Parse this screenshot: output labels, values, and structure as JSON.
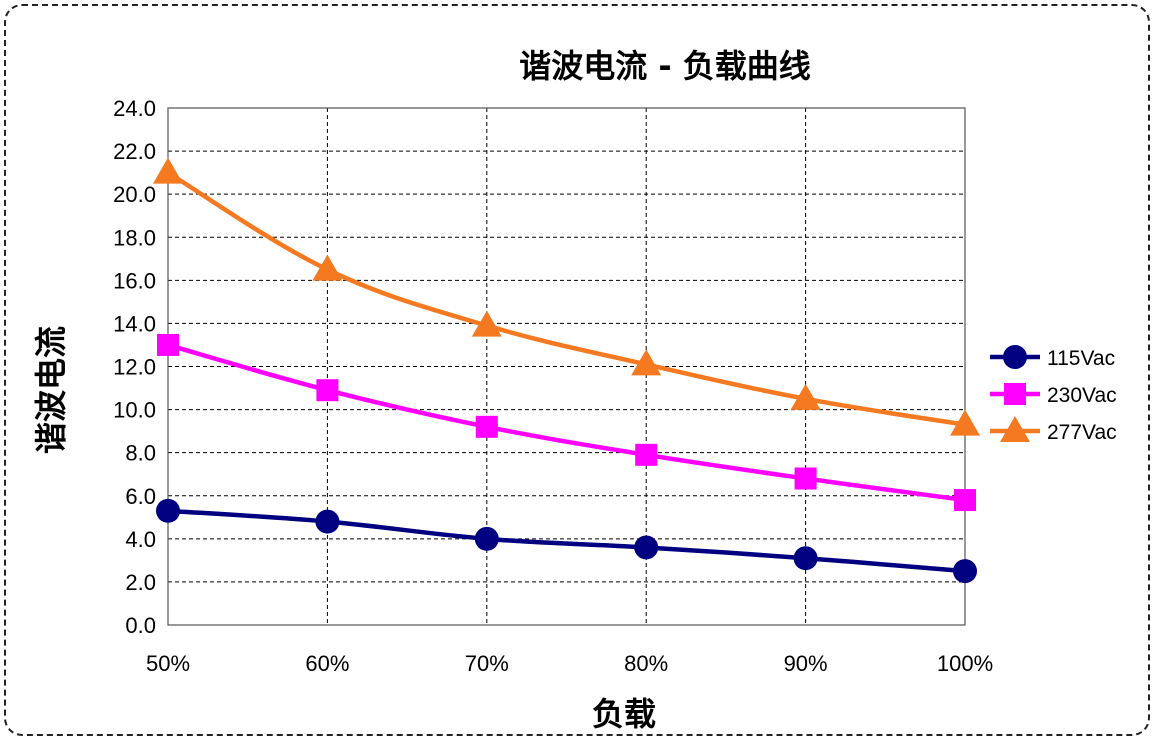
{
  "chart_data": {
    "type": "line",
    "title": "谐波电流 - 负载曲线",
    "xlabel": "负载",
    "ylabel": "谐波电流",
    "categories": [
      "50%",
      "60%",
      "70%",
      "80%",
      "90%",
      "100%"
    ],
    "ylim": [
      0,
      24
    ],
    "yticks": [
      "0.0",
      "2.0",
      "4.0",
      "6.0",
      "8.0",
      "10.0",
      "12.0",
      "14.0",
      "16.0",
      "18.0",
      "20.0",
      "22.0",
      "24.0"
    ],
    "grid": true,
    "legend_position": "right",
    "series": [
      {
        "name": "115Vac",
        "color": "#000080",
        "marker": "circle",
        "values": [
          5.3,
          4.8,
          4.0,
          3.6,
          3.1,
          2.5
        ]
      },
      {
        "name": "230Vac",
        "color": "#FF00FF",
        "marker": "square",
        "values": [
          13.0,
          10.9,
          9.2,
          7.9,
          6.8,
          5.8
        ]
      },
      {
        "name": "277Vac",
        "color": "#F47920",
        "marker": "triangle",
        "values": [
          21.0,
          16.5,
          13.9,
          12.1,
          10.5,
          9.3
        ]
      }
    ]
  }
}
